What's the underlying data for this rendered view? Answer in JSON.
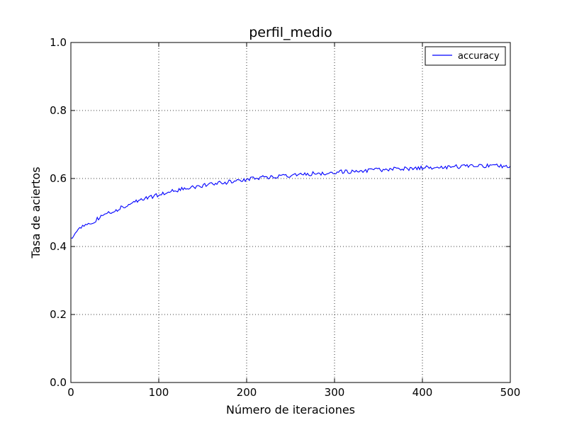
{
  "chart_data": {
    "type": "line",
    "title": "perfil_medio",
    "xlabel": "Número de iteraciones",
    "ylabel": "Tasa de aciertos",
    "xlim": [
      0,
      500
    ],
    "ylim": [
      0.0,
      1.0
    ],
    "x_ticks": [
      "0",
      "100",
      "200",
      "300",
      "400",
      "500"
    ],
    "y_ticks": [
      "0.0",
      "0.2",
      "0.4",
      "0.6",
      "0.8",
      "1.0"
    ],
    "grid": true,
    "legend_position": "top-right",
    "series": [
      {
        "name": "accuracy",
        "color": "#0000ff",
        "x": [
          0,
          5,
          10,
          15,
          20,
          25,
          30,
          40,
          50,
          60,
          70,
          80,
          90,
          100,
          120,
          140,
          160,
          180,
          200,
          220,
          240,
          260,
          280,
          300,
          320,
          340,
          360,
          380,
          400,
          420,
          440,
          460,
          480,
          500
        ],
        "y": [
          0.425,
          0.44,
          0.45,
          0.46,
          0.465,
          0.47,
          0.48,
          0.495,
          0.505,
          0.518,
          0.53,
          0.538,
          0.545,
          0.553,
          0.565,
          0.575,
          0.583,
          0.59,
          0.597,
          0.603,
          0.608,
          0.612,
          0.615,
          0.618,
          0.621,
          0.624,
          0.627,
          0.629,
          0.631,
          0.633,
          0.635,
          0.637,
          0.638,
          0.636
        ]
      }
    ]
  }
}
